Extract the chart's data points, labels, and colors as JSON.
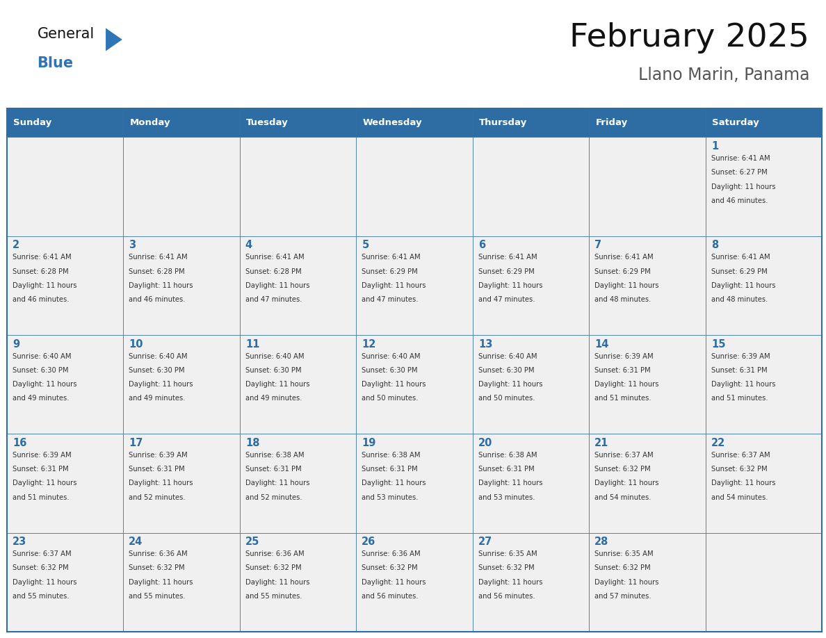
{
  "title": "February 2025",
  "subtitle": "Llano Marin, Panama",
  "days_of_week": [
    "Sunday",
    "Monday",
    "Tuesday",
    "Wednesday",
    "Thursday",
    "Friday",
    "Saturday"
  ],
  "header_bg": "#2E6DA4",
  "header_text_color": "#FFFFFF",
  "cell_bg": "#F0F0F0",
  "border_color": "#2E6DA4",
  "day_num_color": "#2E6DA4",
  "text_color": "#333333",
  "general_blue_color": "#2E75B6",
  "calendar_data": [
    [
      null,
      null,
      null,
      null,
      null,
      null,
      1
    ],
    [
      2,
      3,
      4,
      5,
      6,
      7,
      8
    ],
    [
      9,
      10,
      11,
      12,
      13,
      14,
      15
    ],
    [
      16,
      17,
      18,
      19,
      20,
      21,
      22
    ],
    [
      23,
      24,
      25,
      26,
      27,
      28,
      null
    ]
  ],
  "sun_data": {
    "1": {
      "sunrise": "6:41 AM",
      "sunset": "6:27 PM",
      "daylight_hours": "11",
      "daylight_mins": "46"
    },
    "2": {
      "sunrise": "6:41 AM",
      "sunset": "6:28 PM",
      "daylight_hours": "11",
      "daylight_mins": "46"
    },
    "3": {
      "sunrise": "6:41 AM",
      "sunset": "6:28 PM",
      "daylight_hours": "11",
      "daylight_mins": "46"
    },
    "4": {
      "sunrise": "6:41 AM",
      "sunset": "6:28 PM",
      "daylight_hours": "11",
      "daylight_mins": "47"
    },
    "5": {
      "sunrise": "6:41 AM",
      "sunset": "6:29 PM",
      "daylight_hours": "11",
      "daylight_mins": "47"
    },
    "6": {
      "sunrise": "6:41 AM",
      "sunset": "6:29 PM",
      "daylight_hours": "11",
      "daylight_mins": "47"
    },
    "7": {
      "sunrise": "6:41 AM",
      "sunset": "6:29 PM",
      "daylight_hours": "11",
      "daylight_mins": "48"
    },
    "8": {
      "sunrise": "6:41 AM",
      "sunset": "6:29 PM",
      "daylight_hours": "11",
      "daylight_mins": "48"
    },
    "9": {
      "sunrise": "6:40 AM",
      "sunset": "6:30 PM",
      "daylight_hours": "11",
      "daylight_mins": "49"
    },
    "10": {
      "sunrise": "6:40 AM",
      "sunset": "6:30 PM",
      "daylight_hours": "11",
      "daylight_mins": "49"
    },
    "11": {
      "sunrise": "6:40 AM",
      "sunset": "6:30 PM",
      "daylight_hours": "11",
      "daylight_mins": "49"
    },
    "12": {
      "sunrise": "6:40 AM",
      "sunset": "6:30 PM",
      "daylight_hours": "11",
      "daylight_mins": "50"
    },
    "13": {
      "sunrise": "6:40 AM",
      "sunset": "6:30 PM",
      "daylight_hours": "11",
      "daylight_mins": "50"
    },
    "14": {
      "sunrise": "6:39 AM",
      "sunset": "6:31 PM",
      "daylight_hours": "11",
      "daylight_mins": "51"
    },
    "15": {
      "sunrise": "6:39 AM",
      "sunset": "6:31 PM",
      "daylight_hours": "11",
      "daylight_mins": "51"
    },
    "16": {
      "sunrise": "6:39 AM",
      "sunset": "6:31 PM",
      "daylight_hours": "11",
      "daylight_mins": "51"
    },
    "17": {
      "sunrise": "6:39 AM",
      "sunset": "6:31 PM",
      "daylight_hours": "11",
      "daylight_mins": "52"
    },
    "18": {
      "sunrise": "6:38 AM",
      "sunset": "6:31 PM",
      "daylight_hours": "11",
      "daylight_mins": "52"
    },
    "19": {
      "sunrise": "6:38 AM",
      "sunset": "6:31 PM",
      "daylight_hours": "11",
      "daylight_mins": "53"
    },
    "20": {
      "sunrise": "6:38 AM",
      "sunset": "6:31 PM",
      "daylight_hours": "11",
      "daylight_mins": "53"
    },
    "21": {
      "sunrise": "6:37 AM",
      "sunset": "6:32 PM",
      "daylight_hours": "11",
      "daylight_mins": "54"
    },
    "22": {
      "sunrise": "6:37 AM",
      "sunset": "6:32 PM",
      "daylight_hours": "11",
      "daylight_mins": "54"
    },
    "23": {
      "sunrise": "6:37 AM",
      "sunset": "6:32 PM",
      "daylight_hours": "11",
      "daylight_mins": "55"
    },
    "24": {
      "sunrise": "6:36 AM",
      "sunset": "6:32 PM",
      "daylight_hours": "11",
      "daylight_mins": "55"
    },
    "25": {
      "sunrise": "6:36 AM",
      "sunset": "6:32 PM",
      "daylight_hours": "11",
      "daylight_mins": "55"
    },
    "26": {
      "sunrise": "6:36 AM",
      "sunset": "6:32 PM",
      "daylight_hours": "11",
      "daylight_mins": "56"
    },
    "27": {
      "sunrise": "6:35 AM",
      "sunset": "6:32 PM",
      "daylight_hours": "11",
      "daylight_mins": "56"
    },
    "28": {
      "sunrise": "6:35 AM",
      "sunset": "6:32 PM",
      "daylight_hours": "11",
      "daylight_mins": "57"
    }
  },
  "fig_width": 11.88,
  "fig_height": 9.18,
  "dpi": 100
}
